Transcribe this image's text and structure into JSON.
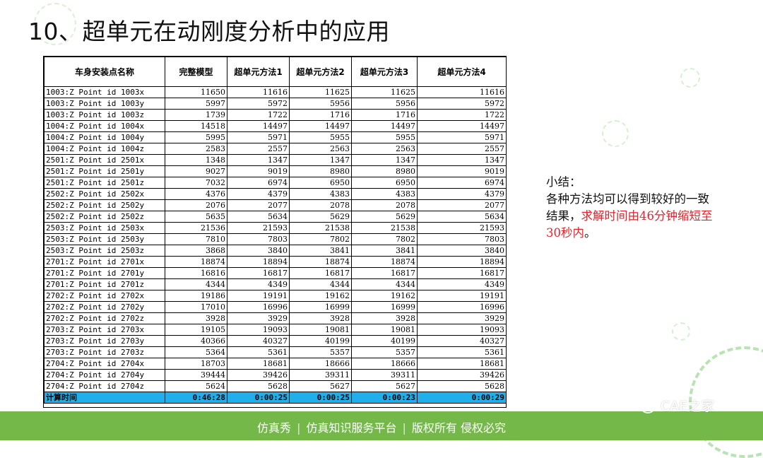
{
  "title": "10、超单元在动刚度分析中的应用",
  "table": {
    "headers": [
      "车身安装点名称",
      "完整模型",
      "超单元方法1",
      "超单元方法2",
      "超单元方法3",
      "超单元方法4"
    ],
    "rows": [
      [
        "1003:Z Point id 1003x",
        "11650",
        "11616",
        "11625",
        "11625",
        "11616"
      ],
      [
        "1003:Z Point id 1003y",
        "5997",
        "5972",
        "5956",
        "5956",
        "5972"
      ],
      [
        "1003:Z Point id 1003z",
        "1739",
        "1722",
        "1716",
        "1716",
        "1722"
      ],
      [
        "1004:Z Point id 1004x",
        "14518",
        "14497",
        "14497",
        "14497",
        "14497"
      ],
      [
        "1004:Z Point id 1004y",
        "5995",
        "5971",
        "5955",
        "5955",
        "5971"
      ],
      [
        "1004:Z Point id 1004z",
        "2583",
        "2557",
        "2563",
        "2563",
        "2557"
      ],
      [
        "2501:Z Point id 2501x",
        "1348",
        "1347",
        "1347",
        "1347",
        "1347"
      ],
      [
        "2501:Z Point id 2501y",
        "9027",
        "9019",
        "8980",
        "8980",
        "9019"
      ],
      [
        "2501:Z Point id 2501z",
        "7032",
        "6974",
        "6950",
        "6950",
        "6974"
      ],
      [
        "2502:Z Point id 2502x",
        "4376",
        "4379",
        "4383",
        "4383",
        "4379"
      ],
      [
        "2502:Z Point id 2502y",
        "2076",
        "2077",
        "2078",
        "2078",
        "2077"
      ],
      [
        "2502:Z Point id 2502z",
        "5635",
        "5634",
        "5629",
        "5629",
        "5634"
      ],
      [
        "2503:Z Point id 2503x",
        "21536",
        "21593",
        "21538",
        "21538",
        "21593"
      ],
      [
        "2503:Z Point id 2503y",
        "7810",
        "7803",
        "7802",
        "7802",
        "7803"
      ],
      [
        "2503:Z Point id 2503z",
        "3868",
        "3840",
        "3841",
        "3841",
        "3840"
      ],
      [
        "2701:Z Point id 2701x",
        "18874",
        "18894",
        "18874",
        "18874",
        "18894"
      ],
      [
        "2701:Z Point id 2701y",
        "16816",
        "16817",
        "16817",
        "16817",
        "16817"
      ],
      [
        "2701:Z Point id 2701z",
        "4344",
        "4349",
        "4344",
        "4344",
        "4349"
      ],
      [
        "2702:Z Point id 2702x",
        "19186",
        "19191",
        "19162",
        "19162",
        "19191"
      ],
      [
        "2702:Z Point id 2702y",
        "17010",
        "16996",
        "16999",
        "16999",
        "16996"
      ],
      [
        "2702:Z Point id 2702z",
        "3928",
        "3929",
        "3928",
        "3928",
        "3929"
      ],
      [
        "2703:Z Point id 2703x",
        "19105",
        "19093",
        "19081",
        "19081",
        "19093"
      ],
      [
        "2703:Z Point id 2703y",
        "40366",
        "40327",
        "40199",
        "40199",
        "40327"
      ],
      [
        "2703:Z Point id 2703z",
        "5364",
        "5361",
        "5357",
        "5357",
        "5361"
      ],
      [
        "2704:Z Point id 2704x",
        "18703",
        "18681",
        "18666",
        "18666",
        "18681"
      ],
      [
        "2704:Z Point id 2704y",
        "39444",
        "39426",
        "39311",
        "39311",
        "39426"
      ],
      [
        "2704:Z Point id 2704z",
        "5624",
        "5628",
        "5627",
        "5627",
        "5628"
      ]
    ],
    "total_row": [
      "计算时间",
      "0:46:28",
      "0:00:25",
      "0:00:25",
      "0:00:23",
      "0:00:29"
    ],
    "total_row_color": "#1fb0ec"
  },
  "summary": {
    "heading": "小结：",
    "line1": "各种方法均可以得到较好的一致",
    "line2_prefix": "结果，",
    "line2_red": "求解时间由46分钟缩短至",
    "line3_red": "30秒内",
    "line3_suffix": "。",
    "highlight_color": "#e8202a"
  },
  "footer": {
    "items": [
      "仿真秀",
      "仿真知识服务平台",
      "版权所有 侵权必究"
    ],
    "separator": "|",
    "color": "#74b84a"
  },
  "watermark": {
    "icon": "wechat-icon",
    "text": "CAE之家"
  }
}
